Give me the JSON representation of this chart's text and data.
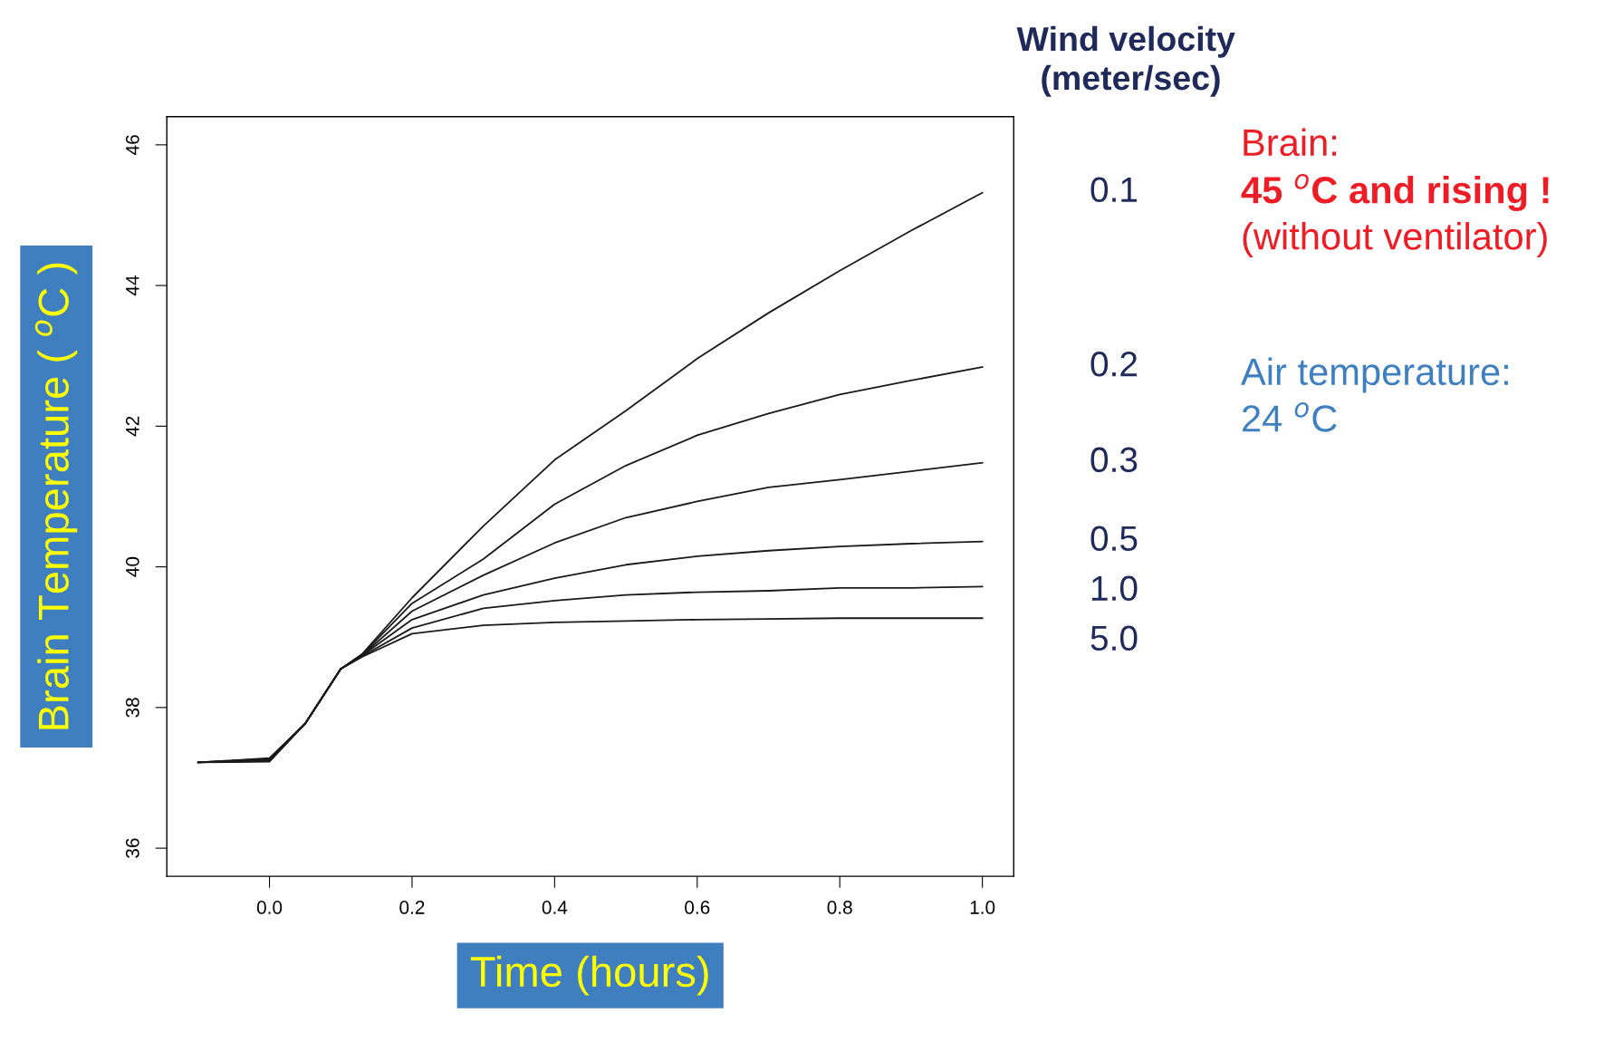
{
  "chart_data": {
    "type": "line",
    "xlabel": "Time (hours)",
    "ylabel": "Brain Temperature ( $^{o}$C )",
    "legend_title": "Wind velocity\n (meter/sec)",
    "x": [
      -0.1,
      0.0,
      0.05,
      0.1,
      0.13,
      0.2,
      0.3,
      0.4,
      0.5,
      0.6,
      0.7,
      0.8,
      0.9,
      1.0
    ],
    "series": [
      {
        "name": "0.1",
        "color": "#1a1a1a",
        "values": [
          37.22,
          37.28,
          37.77,
          38.55,
          38.76,
          39.56,
          40.58,
          41.52,
          42.22,
          42.96,
          43.61,
          44.21,
          44.78,
          45.32
        ]
      },
      {
        "name": "0.2",
        "color": "#1a1a1a",
        "values": [
          37.22,
          37.27,
          37.77,
          38.55,
          38.75,
          39.48,
          40.11,
          40.89,
          41.44,
          41.87,
          42.18,
          42.45,
          42.65,
          42.84
        ]
      },
      {
        "name": "0.3",
        "color": "#1a1a1a",
        "values": [
          37.22,
          37.26,
          37.77,
          38.55,
          38.74,
          39.37,
          39.88,
          40.34,
          40.7,
          40.93,
          41.13,
          41.24,
          41.36,
          41.48
        ]
      },
      {
        "name": "0.5",
        "color": "#1a1a1a",
        "values": [
          37.22,
          37.25,
          37.77,
          38.55,
          38.74,
          39.25,
          39.6,
          39.84,
          40.03,
          40.15,
          40.23,
          40.29,
          40.33,
          40.36
        ]
      },
      {
        "name": "1.0",
        "color": "#1a1a1a",
        "values": [
          37.22,
          37.24,
          37.77,
          38.55,
          38.73,
          39.13,
          39.41,
          39.52,
          39.6,
          39.64,
          39.66,
          39.7,
          39.7,
          39.72
        ]
      },
      {
        "name": "5.0",
        "color": "#1a1a1a",
        "values": [
          37.22,
          37.23,
          37.77,
          38.55,
          38.72,
          39.05,
          39.17,
          39.21,
          39.23,
          39.25,
          39.26,
          39.27,
          39.27,
          39.27
        ]
      }
    ],
    "xlim": [
      -0.144,
      1.044
    ],
    "ylim": [
      35.6,
      46.4
    ],
    "xticks": [
      {
        "value": 0.0,
        "label": "0.0"
      },
      0.2,
      0.4,
      0.6,
      0.8,
      {
        "value": 1.0,
        "label": "1.0"
      }
    ],
    "yticks": [
      36,
      38,
      40,
      42,
      44,
      46
    ],
    "grid": false,
    "legend": "right",
    "marker": "none",
    "line_style": "solid",
    "annotations": [
      "Brain:",
      "45 $^{o}$C and rising !",
      "(without ventilator)",
      "Air temperature:",
      "24 $^{o}$C"
    ]
  }
}
